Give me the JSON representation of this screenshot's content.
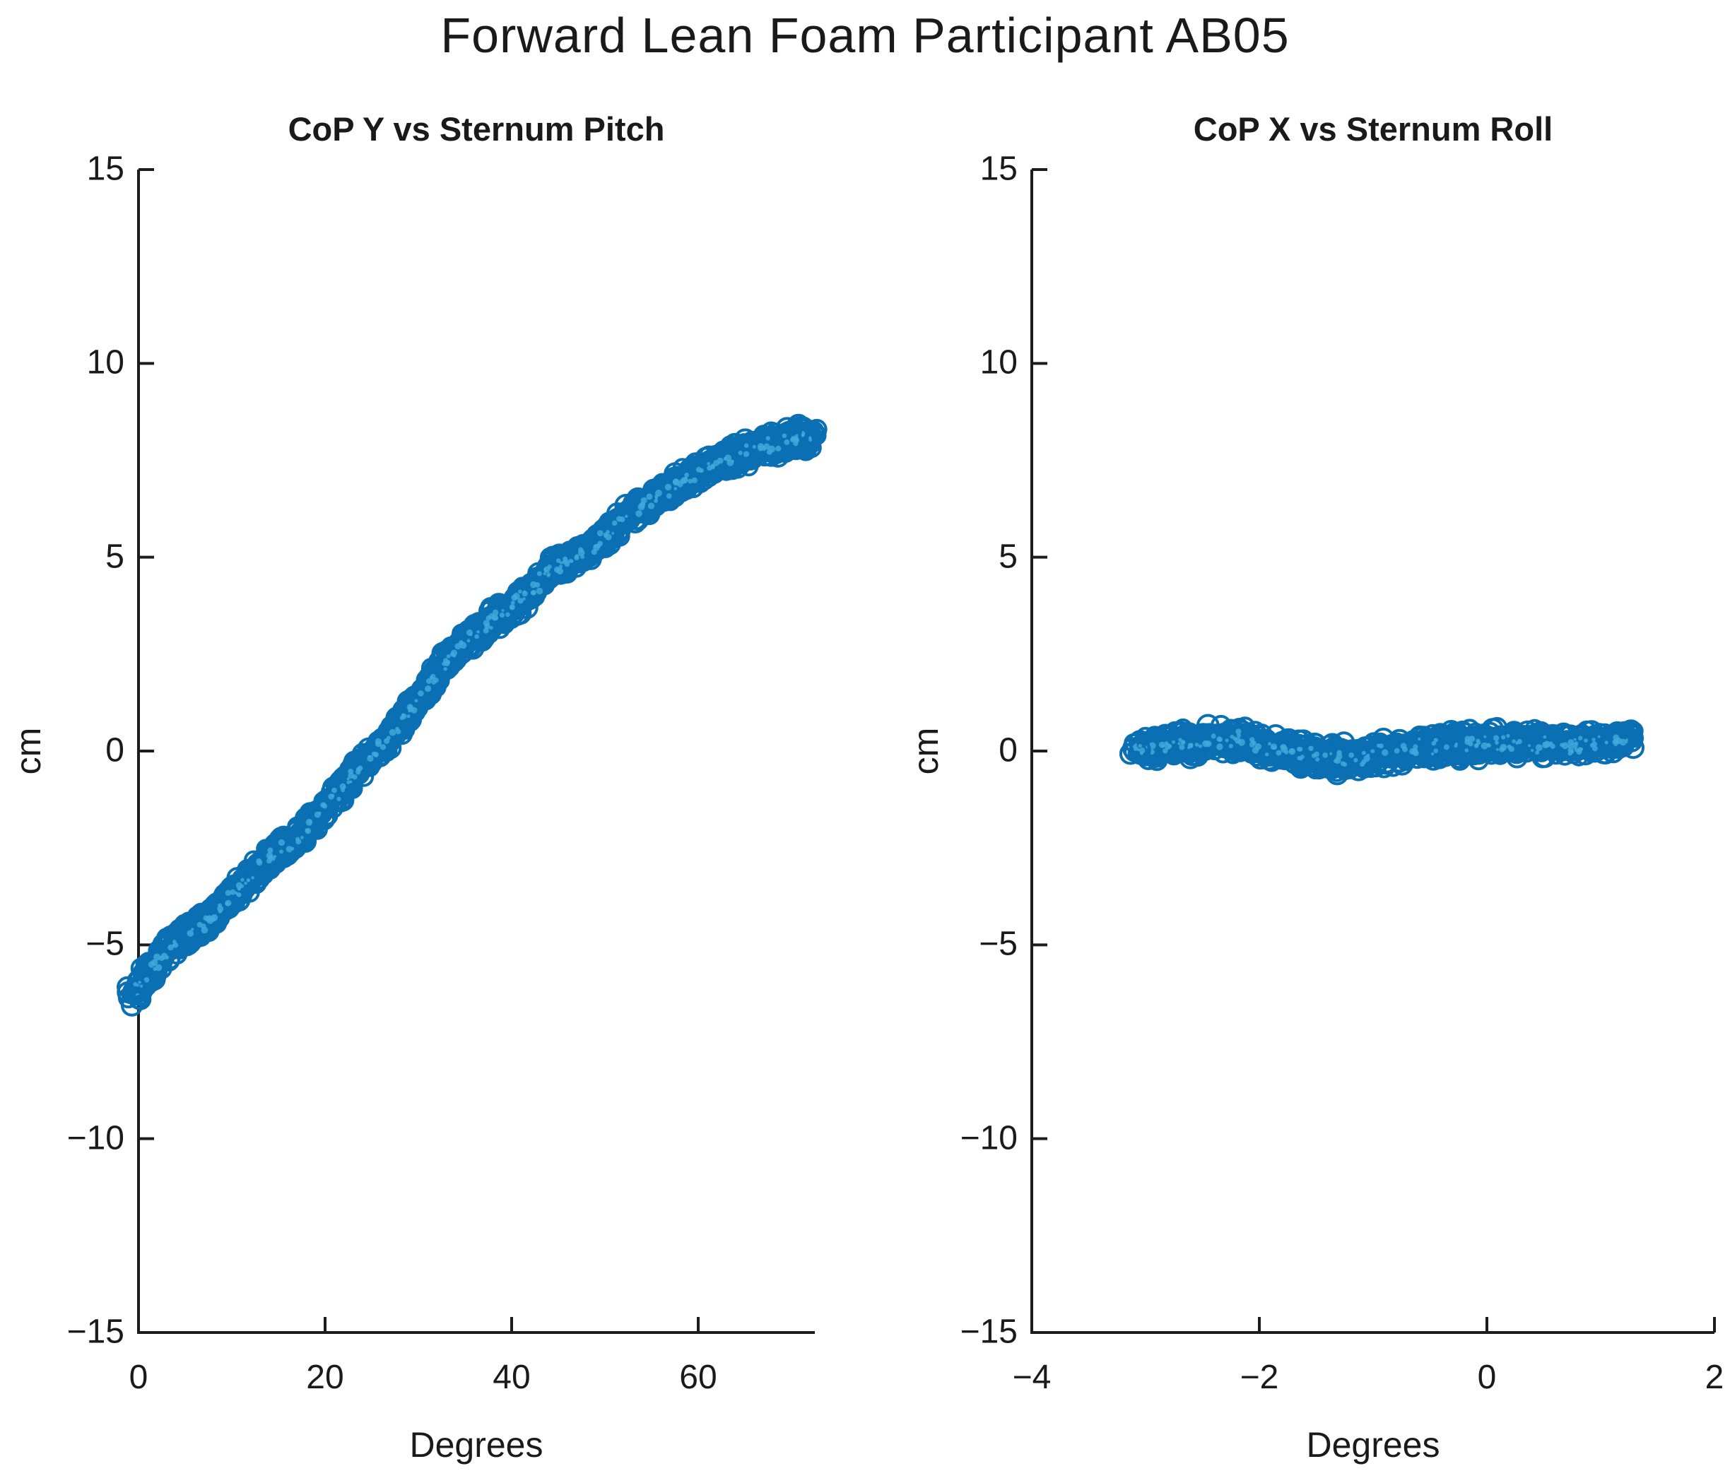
{
  "figure": {
    "title": "Forward Lean Foam Participant AB05",
    "background": "#ffffff"
  },
  "style": {
    "marker_face": "#0e76bc",
    "marker_edge": "#0a6fb3",
    "speckle": "#41a8da",
    "matlab_blue": "#0072BD",
    "axis_color": "#1c1c1c",
    "text_color": "#1a1a1a"
  },
  "chart_data": [
    {
      "type": "scatter",
      "title": "CoP Y vs Sternum Pitch",
      "xlabel": "Degrees",
      "ylabel": "cm",
      "xlim": [
        0,
        72.5
      ],
      "ylim": [
        -15,
        15
      ],
      "xticks": [
        0,
        20,
        40,
        60
      ],
      "yticks": [
        15,
        10,
        5,
        0,
        -5,
        -10,
        -15
      ],
      "marker": "o",
      "legend": null,
      "grid": false,
      "trend_points_deg_cm_spread": [
        [
          -0.5,
          -6.2,
          0.5
        ],
        [
          0,
          -6.05,
          0.55
        ],
        [
          1,
          -5.75,
          0.55
        ],
        [
          2,
          -5.45,
          0.5
        ],
        [
          3,
          -5.15,
          0.45
        ],
        [
          4,
          -4.95,
          0.42
        ],
        [
          5,
          -4.78,
          0.42
        ],
        [
          6,
          -4.62,
          0.42
        ],
        [
          7,
          -4.45,
          0.42
        ],
        [
          8,
          -4.25,
          0.42
        ],
        [
          9,
          -4.0,
          0.42
        ],
        [
          10,
          -3.75,
          0.42
        ],
        [
          11,
          -3.5,
          0.42
        ],
        [
          12,
          -3.25,
          0.42
        ],
        [
          13,
          -3.0,
          0.42
        ],
        [
          14,
          -2.78,
          0.42
        ],
        [
          15,
          -2.58,
          0.42
        ],
        [
          16,
          -2.45,
          0.42
        ],
        [
          17,
          -2.28,
          0.42
        ],
        [
          18,
          -2.02,
          0.42
        ],
        [
          19,
          -1.72,
          0.42
        ],
        [
          20,
          -1.45,
          0.42
        ],
        [
          21,
          -1.18,
          0.42
        ],
        [
          22,
          -0.9,
          0.42
        ],
        [
          23,
          -0.62,
          0.42
        ],
        [
          24,
          -0.38,
          0.42
        ],
        [
          25,
          -0.15,
          0.42
        ],
        [
          26,
          0.1,
          0.42
        ],
        [
          27,
          0.38,
          0.42
        ],
        [
          28,
          0.68,
          0.42
        ],
        [
          29,
          1.0,
          0.42
        ],
        [
          30,
          1.3,
          0.44
        ],
        [
          31,
          1.65,
          0.46
        ],
        [
          32,
          2.0,
          0.46
        ],
        [
          33,
          2.32,
          0.44
        ],
        [
          34,
          2.58,
          0.42
        ],
        [
          35,
          2.82,
          0.42
        ],
        [
          36,
          3.02,
          0.42
        ],
        [
          37,
          3.2,
          0.42
        ],
        [
          38,
          3.38,
          0.42
        ],
        [
          39,
          3.55,
          0.42
        ],
        [
          40,
          3.72,
          0.42
        ],
        [
          41,
          3.92,
          0.44
        ],
        [
          42,
          4.12,
          0.44
        ],
        [
          43,
          4.35,
          0.44
        ],
        [
          44,
          4.58,
          0.44
        ],
        [
          45,
          4.76,
          0.42
        ],
        [
          46,
          4.9,
          0.42
        ],
        [
          47,
          5.0,
          0.42
        ],
        [
          48,
          5.14,
          0.42
        ],
        [
          49,
          5.32,
          0.42
        ],
        [
          50,
          5.55,
          0.44
        ],
        [
          51,
          5.78,
          0.44
        ],
        [
          52,
          5.98,
          0.42
        ],
        [
          53,
          6.15,
          0.42
        ],
        [
          54,
          6.32,
          0.42
        ],
        [
          55,
          6.48,
          0.42
        ],
        [
          56,
          6.62,
          0.42
        ],
        [
          57,
          6.78,
          0.42
        ],
        [
          58,
          6.92,
          0.42
        ],
        [
          59,
          7.06,
          0.42
        ],
        [
          60,
          7.2,
          0.42
        ],
        [
          61,
          7.3,
          0.42
        ],
        [
          62,
          7.4,
          0.42
        ],
        [
          63,
          7.5,
          0.42
        ],
        [
          64,
          7.6,
          0.42
        ],
        [
          65,
          7.7,
          0.44
        ],
        [
          66,
          7.78,
          0.44
        ],
        [
          67,
          7.85,
          0.44
        ],
        [
          68,
          7.92,
          0.44
        ],
        [
          69,
          8.0,
          0.46
        ],
        [
          70,
          8.05,
          0.46
        ],
        [
          71,
          8.08,
          0.44
        ],
        [
          72.2,
          8.08,
          0.4
        ]
      ],
      "outline_markers": [
        [
          0.2,
          -6.4
        ],
        [
          -0.3,
          -6.1
        ],
        [
          71.9,
          8.15
        ]
      ],
      "n_rendered_markers": 1600
    },
    {
      "type": "scatter",
      "title": "CoP X vs Sternum Roll",
      "xlabel": "Degrees",
      "ylabel": "cm",
      "xlim": [
        -4,
        2
      ],
      "ylim": [
        -15,
        15
      ],
      "xticks": [
        -4,
        -2,
        0,
        2
      ],
      "yticks": [
        15,
        10,
        5,
        0,
        -5,
        -10,
        -15
      ],
      "marker": "o",
      "legend": null,
      "grid": false,
      "trend_points_deg_cm_spread": [
        [
          -3.1,
          0.05,
          0.28
        ],
        [
          -2.95,
          0.1,
          0.4
        ],
        [
          -2.8,
          0.14,
          0.45
        ],
        [
          -2.6,
          0.22,
          0.5
        ],
        [
          -2.4,
          0.28,
          0.5
        ],
        [
          -2.2,
          0.3,
          0.48
        ],
        [
          -2.05,
          0.2,
          0.46
        ],
        [
          -1.9,
          0.08,
          0.45
        ],
        [
          -1.75,
          0.0,
          0.45
        ],
        [
          -1.6,
          -0.08,
          0.45
        ],
        [
          -1.45,
          -0.14,
          0.48
        ],
        [
          -1.3,
          -0.18,
          0.5
        ],
        [
          -1.15,
          -0.17,
          0.5
        ],
        [
          -1.0,
          -0.1,
          0.48
        ],
        [
          -0.85,
          -0.02,
          0.46
        ],
        [
          -0.7,
          0.05,
          0.45
        ],
        [
          -0.55,
          0.1,
          0.46
        ],
        [
          -0.4,
          0.12,
          0.48
        ],
        [
          -0.25,
          0.15,
          0.5
        ],
        [
          -0.1,
          0.18,
          0.5
        ],
        [
          0.05,
          0.2,
          0.5
        ],
        [
          0.2,
          0.2,
          0.5
        ],
        [
          0.35,
          0.18,
          0.48
        ],
        [
          0.5,
          0.16,
          0.46
        ],
        [
          0.65,
          0.13,
          0.45
        ],
        [
          0.8,
          0.14,
          0.44
        ],
        [
          0.95,
          0.18,
          0.42
        ],
        [
          1.1,
          0.25,
          0.36
        ],
        [
          1.25,
          0.3,
          0.26
        ]
      ],
      "outline_markers": [
        [
          -3.05,
          0.03
        ],
        [
          1.17,
          0.28
        ]
      ],
      "n_rendered_markers": 1000
    }
  ]
}
